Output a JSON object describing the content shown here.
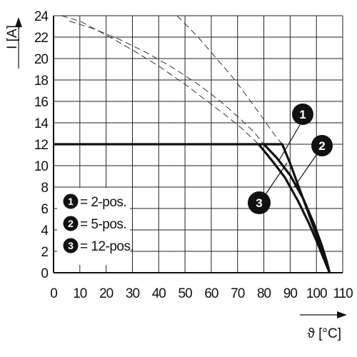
{
  "chart_data": {
    "type": "line",
    "xlabel": "ϑ [°C]",
    "ylabel": "I [A]",
    "xlim": [
      0,
      110
    ],
    "ylim": [
      0,
      24
    ],
    "xticks": [
      0,
      10,
      20,
      30,
      40,
      50,
      60,
      70,
      80,
      90,
      100,
      110
    ],
    "yticks": [
      0,
      2,
      4,
      6,
      8,
      10,
      12,
      14,
      16,
      18,
      20,
      22,
      24
    ],
    "grid": true,
    "legend_position": "bottom-left",
    "legend": [
      {
        "marker": "1",
        "label": "= 2-pos."
      },
      {
        "marker": "2",
        "label": "= 5-pos."
      },
      {
        "marker": "3",
        "label": "= 12-pos."
      }
    ],
    "series": [
      {
        "marker": "1",
        "solid": {
          "x": [
            0,
            87,
            90,
            93,
            96,
            99,
            102,
            104,
            105
          ],
          "y": [
            12,
            12,
            10.2,
            8.2,
            6.2,
            4.2,
            2.2,
            0.8,
            0
          ]
        },
        "dashed": {
          "x": [
            47,
            55,
            62,
            69,
            75,
            80,
            84,
            87
          ],
          "y": [
            24,
            22,
            20,
            18,
            16,
            14.3,
            12.9,
            12
          ]
        }
      },
      {
        "marker": "2",
        "solid": {
          "x": [
            80,
            85,
            90,
            95,
            99,
            102,
            104,
            105
          ],
          "y": [
            12,
            10.7,
            9.1,
            6.9,
            4.6,
            2.6,
            1.0,
            0
          ]
        },
        "dashed": {
          "x": [
            6,
            15,
            25,
            35,
            45,
            55,
            63,
            70,
            76,
            80
          ],
          "y": [
            23.5,
            22.8,
            21.8,
            20.6,
            19.2,
            17.6,
            16.1,
            14.6,
            13.2,
            12
          ]
        }
      },
      {
        "marker": "3",
        "solid": {
          "x": [
            78,
            83,
            88,
            93,
            97,
            100,
            103,
            105
          ],
          "y": [
            12,
            10.5,
            8.9,
            6.7,
            4.7,
            3.0,
            1.2,
            0
          ]
        },
        "dashed": {
          "x": [
            3,
            10,
            20,
            30,
            40,
            50,
            58,
            65,
            71,
            75,
            78
          ],
          "y": [
            24,
            23.5,
            22.2,
            20.8,
            19.3,
            17.6,
            16.1,
            14.8,
            13.6,
            12.7,
            12
          ]
        }
      }
    ]
  }
}
